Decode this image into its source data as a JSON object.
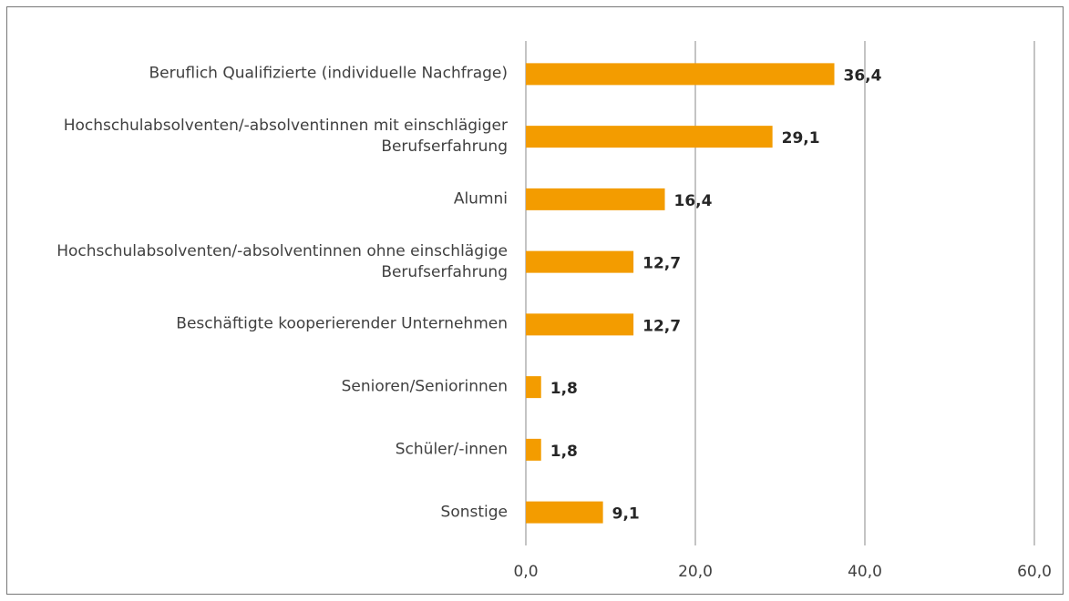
{
  "chart_data": {
    "type": "barh",
    "categories": [
      "Beruflich Qualifizierte (individuelle Nachfrage)",
      "Hochschulabsolventen/-absolventinnen mit einschlägiger Berufserfahrung",
      "Alumni",
      "Hochschulabsolventen/-absolventinnen ohne einschlägige Berufserfahrung",
      "Beschäftigte kooperierender Unternehmen",
      "Senioren/Seniorinnen",
      "Schüler/-innen",
      "Sonstige"
    ],
    "values": [
      36.4,
      29.1,
      16.4,
      12.7,
      12.7,
      1.8,
      1.8,
      9.1
    ],
    "value_labels": [
      "36,4",
      "29,1",
      "16,4",
      "12,7",
      "12,7",
      "1,8",
      "1,8",
      "9,1"
    ],
    "color": "#f39c00",
    "xlim": [
      0,
      60
    ],
    "xticks": [
      {
        "value": 0,
        "label": "0,0"
      },
      {
        "value": 20,
        "label": "20,0"
      },
      {
        "value": 40,
        "label": "40,0"
      },
      {
        "value": 60,
        "label": "60,0"
      }
    ],
    "grid": true
  }
}
